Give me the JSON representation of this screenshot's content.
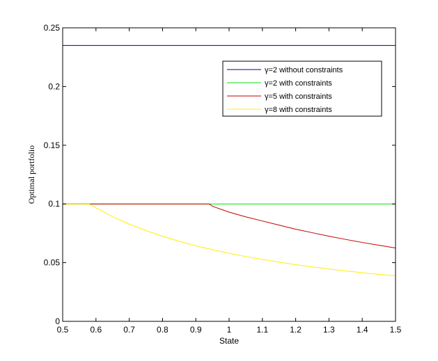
{
  "chart_data": {
    "type": "line",
    "title": "",
    "xlabel": "State",
    "ylabel": "Optimal portfolio",
    "xlim": [
      0.5,
      1.5
    ],
    "ylim": [
      0,
      0.25
    ],
    "xticks": [
      0.5,
      0.6,
      0.7,
      0.8,
      0.9,
      1,
      1.1,
      1.2,
      1.3,
      1.4,
      1.5
    ],
    "xtick_labels": [
      "0.5",
      "0.6",
      "0.7",
      "0.8",
      "0.9",
      "1",
      "1.1",
      "1.2",
      "1.3",
      "1.4",
      "1.5"
    ],
    "yticks": [
      0,
      0.05,
      0.1,
      0.15,
      0.2,
      0.25
    ],
    "ytick_labels": [
      "0",
      "0.05",
      "0.1",
      "0.15",
      "0.2",
      "0.25"
    ],
    "grid": false,
    "legend_position": "top-right",
    "series": [
      {
        "name": "γ=2 without constraints",
        "color": "#000080",
        "x": [
          0.5,
          1.5
        ],
        "y": [
          0.235,
          0.235
        ]
      },
      {
        "name": "γ=2 with constraints",
        "color": "#00e000",
        "x": [
          0.5,
          1.5
        ],
        "y": [
          0.1,
          0.1
        ]
      },
      {
        "name": "γ=5 with constraints",
        "color": "#c00000",
        "x": [
          0.5,
          0.94,
          0.95,
          1.0,
          1.05,
          1.1,
          1.15,
          1.2,
          1.25,
          1.3,
          1.35,
          1.4,
          1.45,
          1.5
        ],
        "y": [
          0.1,
          0.1,
          0.098,
          0.093,
          0.089,
          0.0855,
          0.082,
          0.0785,
          0.0755,
          0.0725,
          0.0698,
          0.0672,
          0.0648,
          0.0625
        ]
      },
      {
        "name": "γ=8 with constraints",
        "color": "#ffee00",
        "x": [
          0.5,
          0.58,
          0.6,
          0.65,
          0.7,
          0.75,
          0.8,
          0.85,
          0.9,
          0.95,
          1.0,
          1.05,
          1.1,
          1.15,
          1.2,
          1.25,
          1.3,
          1.35,
          1.4,
          1.45,
          1.5
        ],
        "y": [
          0.1,
          0.1,
          0.0967,
          0.0892,
          0.0828,
          0.0773,
          0.0725,
          0.0682,
          0.0644,
          0.061,
          0.058,
          0.0552,
          0.0527,
          0.0504,
          0.0483,
          0.0464,
          0.0446,
          0.043,
          0.0414,
          0.04,
          0.0387
        ]
      }
    ]
  }
}
